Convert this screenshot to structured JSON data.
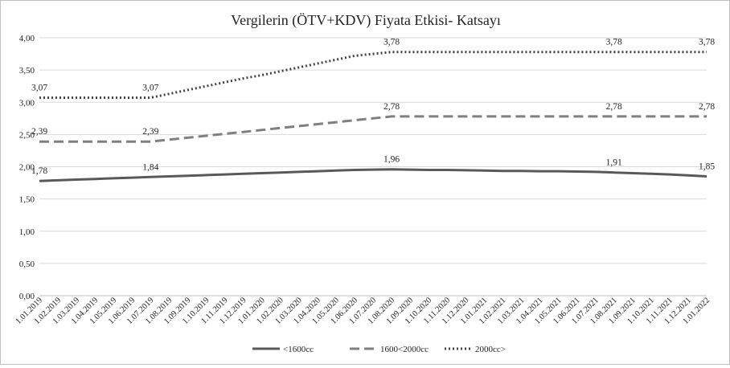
{
  "chart_data": {
    "type": "line",
    "title": "Vergilerin (ÖTV+KDV) Fiyata Etkisi- Katsayı",
    "xlabel": "",
    "ylabel": "",
    "ylim": [
      0,
      4
    ],
    "yticks": [
      "0,00",
      "0,50",
      "1,00",
      "1,50",
      "2,00",
      "2,50",
      "3,00",
      "3,50",
      "4,00"
    ],
    "grid": true,
    "legend": "bottom",
    "x": [
      "1.01.2019",
      "1.02.2019",
      "1.03.2019",
      "1.04.2019",
      "1.05.2019",
      "1.06.2019",
      "1.07.2019",
      "1.08.2019",
      "1.09.2019",
      "1.10.2019",
      "1.11.2019",
      "1.12.2019",
      "1.01.2020",
      "1.02.2020",
      "1.03.2020",
      "1.04.2020",
      "1.05.2020",
      "1.06.2020",
      "1.07.2020",
      "1.08.2020",
      "1.09.2020",
      "1.10.2020",
      "1.11.2020",
      "1.12.2020",
      "1.01.2021",
      "1.02.2021",
      "1.03.2021",
      "1.04.2021",
      "1.05.2021",
      "1.06.2021",
      "1.07.2021",
      "1.08.2021",
      "1.09.2021",
      "1.10.2021",
      "1.11.2021",
      "1.12.2021",
      "1.01.2022"
    ],
    "series": [
      {
        "name": "<1600cc",
        "style": "solid",
        "color": "#595959",
        "values": [
          1.78,
          1.79,
          1.8,
          1.81,
          1.82,
          1.83,
          1.84,
          1.85,
          1.86,
          1.87,
          1.88,
          1.89,
          1.9,
          1.91,
          1.92,
          1.93,
          1.94,
          1.95,
          1.955,
          1.96,
          1.955,
          1.95,
          1.95,
          1.945,
          1.94,
          1.935,
          1.935,
          1.93,
          1.93,
          1.925,
          1.92,
          1.91,
          1.9,
          1.89,
          1.88,
          1.865,
          1.85
        ],
        "labels": [
          {
            "index": 0,
            "text": "1,78"
          },
          {
            "index": 6,
            "text": "1,84"
          },
          {
            "index": 19,
            "text": "1,96"
          },
          {
            "index": 31,
            "text": "1,91"
          },
          {
            "index": 36,
            "text": "1,85"
          }
        ]
      },
      {
        "name": "1600<2000cc",
        "style": "dashed",
        "color": "#7f7f7f",
        "values": [
          2.39,
          2.39,
          2.39,
          2.39,
          2.39,
          2.39,
          2.39,
          2.42,
          2.45,
          2.48,
          2.51,
          2.54,
          2.57,
          2.6,
          2.63,
          2.66,
          2.69,
          2.72,
          2.75,
          2.78,
          2.78,
          2.78,
          2.78,
          2.78,
          2.78,
          2.78,
          2.78,
          2.78,
          2.78,
          2.78,
          2.78,
          2.78,
          2.78,
          2.78,
          2.78,
          2.78,
          2.78
        ],
        "labels": [
          {
            "index": 0,
            "text": "2,39"
          },
          {
            "index": 6,
            "text": "2,39"
          },
          {
            "index": 19,
            "text": "2,78"
          },
          {
            "index": 31,
            "text": "2,78"
          },
          {
            "index": 36,
            "text": "2,78"
          }
        ]
      },
      {
        "name": "2000cc>",
        "style": "dotted",
        "color": "#404040",
        "values": [
          3.07,
          3.07,
          3.07,
          3.07,
          3.07,
          3.07,
          3.07,
          3.13,
          3.19,
          3.25,
          3.31,
          3.37,
          3.42,
          3.48,
          3.54,
          3.6,
          3.66,
          3.72,
          3.75,
          3.78,
          3.78,
          3.78,
          3.78,
          3.78,
          3.78,
          3.78,
          3.78,
          3.78,
          3.78,
          3.78,
          3.78,
          3.78,
          3.78,
          3.78,
          3.78,
          3.78,
          3.78
        ],
        "labels": [
          {
            "index": 0,
            "text": "3,07"
          },
          {
            "index": 6,
            "text": "3,07"
          },
          {
            "index": 19,
            "text": "3,78"
          },
          {
            "index": 31,
            "text": "3,78"
          },
          {
            "index": 36,
            "text": "3,78"
          }
        ]
      }
    ]
  }
}
